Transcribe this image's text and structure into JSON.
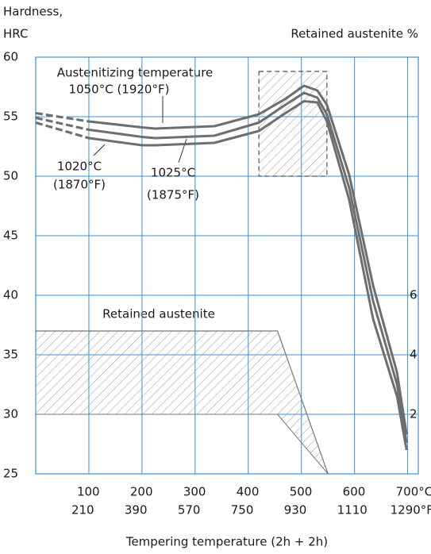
{
  "chart_data": {
    "type": "line",
    "y_label": [
      "Hardness,",
      "HRC"
    ],
    "y2_label": "Retained austenite %",
    "x_label": "Tempering temperature (2h + 2h)",
    "annotation_title": "Austenitizing temperature",
    "band_label": "Retained austenite",
    "xlim": [
      0,
      720
    ],
    "xticks": [
      100,
      200,
      300,
      400,
      500,
      600,
      {
        "value": 700,
        "label": "700°C"
      }
    ],
    "xticks_f": [
      210,
      390,
      570,
      750,
      930,
      1110,
      {
        "value": 1290,
        "label": "1290°F"
      }
    ],
    "ylim": [
      25,
      60
    ],
    "yticks": [
      25,
      30,
      35,
      40,
      45,
      50,
      55,
      60
    ],
    "y2lim": [
      0,
      14
    ],
    "y2ticks": [
      2,
      4,
      6
    ],
    "grid": true,
    "grid_color": "#3d8fd8",
    "dash_to": 100,
    "series": [
      {
        "name": "1050°C (1920°F)",
        "label": [
          "1050°C (1920°F)"
        ],
        "color": "#6e6e6e",
        "x": [
          0,
          100,
          200,
          225,
          336,
          420,
          470,
          505,
          530,
          548,
          590,
          635,
          680,
          698
        ],
        "values": [
          55.3,
          54.6,
          54.1,
          54.0,
          54.2,
          55.2,
          56.5,
          57.6,
          57.2,
          56.0,
          50.1,
          40.8,
          33.5,
          28.3
        ]
      },
      {
        "name": "1025°C (1875°F)",
        "label": [
          "1025°C",
          "(1875°F)"
        ],
        "color": "#6e6e6e",
        "x": [
          0,
          100,
          200,
          225,
          336,
          420,
          470,
          505,
          530,
          548,
          590,
          635,
          680,
          698
        ],
        "values": [
          54.9,
          53.9,
          53.3,
          53.2,
          53.4,
          54.5,
          56.0,
          57.0,
          56.6,
          55.2,
          49.0,
          39.5,
          32.5,
          27.6
        ]
      },
      {
        "name": "1020°C (1870°F)",
        "label": [
          "1020°C",
          "(1870°F)"
        ],
        "color": "#6e6e6e",
        "x": [
          0,
          100,
          200,
          225,
          336,
          420,
          470,
          505,
          530,
          548,
          590,
          635,
          680,
          698
        ],
        "values": [
          54.5,
          53.2,
          52.6,
          52.6,
          52.8,
          53.8,
          55.3,
          56.3,
          56.2,
          54.6,
          48.0,
          38.0,
          31.5,
          27.0
        ]
      }
    ],
    "hardness_band": {
      "x": [
        420,
        548
      ],
      "values": [
        50,
        58.8
      ]
    },
    "retained_austenite": {
      "x": [
        0,
        455,
        550
      ],
      "upper": [
        4.8,
        4.8,
        0
      ],
      "lower": [
        2,
        2,
        0
      ]
    }
  }
}
